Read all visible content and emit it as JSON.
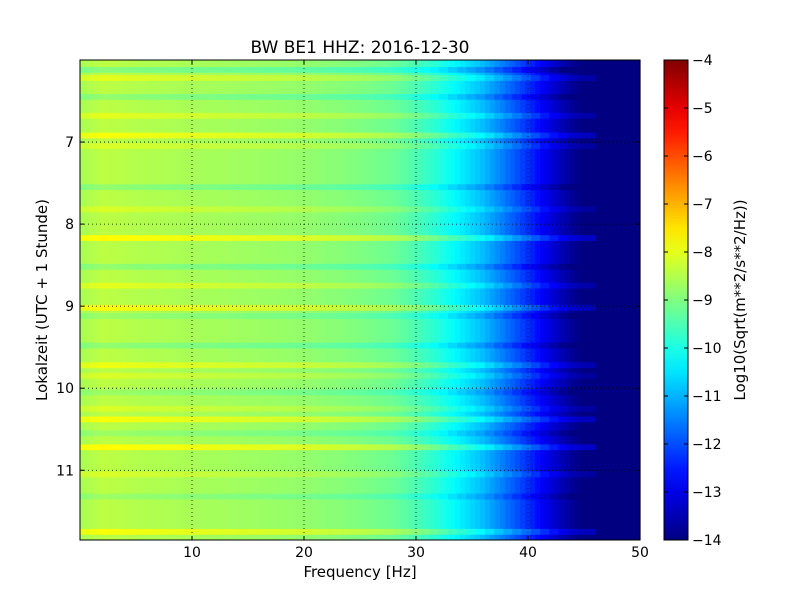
{
  "chart_data": {
    "type": "heatmap",
    "title": "BW BE1 HHZ: 2016-12-30",
    "xlabel": "Frequency [Hz]",
    "ylabel": "Lokalzeit (UTC + 1 Stunde)",
    "xlim": [
      0,
      50
    ],
    "ylim": [
      11.85,
      6.0
    ],
    "x_ticks": [
      10,
      20,
      30,
      40,
      50
    ],
    "y_ticks": [
      7,
      8,
      9,
      10,
      11
    ],
    "grid": true,
    "colorbar": {
      "label": "Log10(Sqrt(m**2/s**2/Hz))",
      "range": [
        -14,
        -4
      ],
      "ticks": [
        -4,
        -5,
        -6,
        -7,
        -8,
        -9,
        -10,
        -11,
        -12,
        -13,
        -14
      ],
      "colormap": "jet"
    },
    "frequency_profile": {
      "x": [
        0,
        2,
        5,
        10,
        15,
        20,
        25,
        28,
        30,
        32,
        34,
        36,
        38,
        40,
        42,
        44,
        45,
        46,
        50
      ],
      "values": [
        -8.6,
        -8.4,
        -8.5,
        -8.6,
        -8.7,
        -8.8,
        -9.0,
        -9.2,
        -9.5,
        -9.9,
        -10.4,
        -10.9,
        -11.6,
        -12.3,
        -13.1,
        -13.8,
        -14.0,
        -14.0,
        -14.0
      ]
    },
    "time_bands": [
      {
        "time": 6.12,
        "offset": -0.5
      },
      {
        "time": 6.22,
        "offset": 0.4
      },
      {
        "time": 6.45,
        "offset": -0.4
      },
      {
        "time": 6.68,
        "offset": 0.4
      },
      {
        "time": 6.92,
        "offset": 0.6
      },
      {
        "time": 7.05,
        "offset": 0.3
      },
      {
        "time": 7.55,
        "offset": -0.4
      },
      {
        "time": 7.82,
        "offset": 0.3
      },
      {
        "time": 8.17,
        "offset": 0.7
      },
      {
        "time": 8.52,
        "offset": -0.4
      },
      {
        "time": 8.75,
        "offset": 0.4
      },
      {
        "time": 9.02,
        "offset": 0.6
      },
      {
        "time": 9.12,
        "offset": -0.3
      },
      {
        "time": 9.48,
        "offset": -0.4
      },
      {
        "time": 9.72,
        "offset": 0.5
      },
      {
        "time": 9.85,
        "offset": 0.3
      },
      {
        "time": 10.05,
        "offset": -0.3
      },
      {
        "time": 10.25,
        "offset": 0.3
      },
      {
        "time": 10.38,
        "offset": 0.6
      },
      {
        "time": 10.55,
        "offset": -0.3
      },
      {
        "time": 10.72,
        "offset": 0.7
      },
      {
        "time": 11.05,
        "offset": 0.3
      },
      {
        "time": 11.32,
        "offset": -0.3
      },
      {
        "time": 11.75,
        "offset": 0.6
      }
    ],
    "colors": {
      "background": "#ffffff",
      "axes": "#000000",
      "grid": "#000000"
    }
  }
}
